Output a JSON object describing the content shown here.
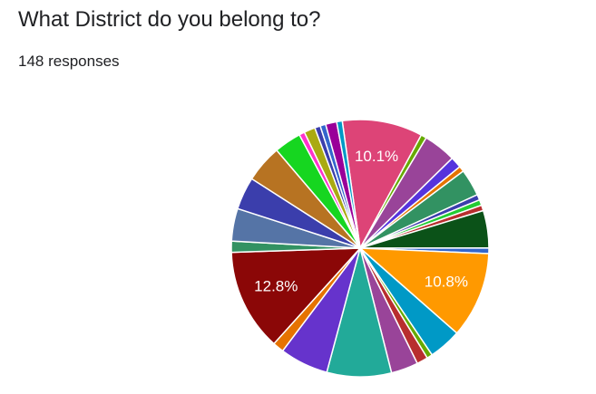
{
  "chart_data": {
    "type": "pie",
    "title": "What District do you belong to?",
    "subtitle": "148 responses",
    "values": [
      10.1,
      0.7,
      4.1,
      1.4,
      0.7,
      3.4,
      0.7,
      0.7,
      0.7,
      4.7,
      0.7,
      10.8,
      4.1,
      0.7,
      1.4,
      3.4,
      8.1,
      6.1,
      1.4,
      12.8,
      1.4,
      4.1,
      4.1,
      4.7,
      3.4,
      0.7,
      1.4,
      0.7,
      0.7,
      1.4,
      0.7
    ],
    "value_labels": [
      "10.1%",
      null,
      null,
      null,
      null,
      null,
      null,
      null,
      null,
      null,
      null,
      "10.8%",
      null,
      null,
      null,
      null,
      null,
      null,
      null,
      "12.8%",
      null,
      null,
      null,
      null,
      null,
      null,
      null,
      null,
      null,
      null,
      null
    ],
    "colors": [
      "#dd4477",
      "#66aa00",
      "#994499",
      "#5533dd",
      "#e67300",
      "#329262",
      "#3b3eac",
      "#22cc33",
      "#b82e2e",
      "#0b5218",
      "#3366cc",
      "#ff9900",
      "#0099c6",
      "#66aa00",
      "#b82e2e",
      "#994499",
      "#22aa99",
      "#6633cc",
      "#e67300",
      "#8b0707",
      "#329262",
      "#5574a6",
      "#3b3eac",
      "#b77322",
      "#16d620",
      "#ff33cc",
      "#aaaa11",
      "#3b3eac",
      "#3366cc",
      "#990099",
      "#0099c6"
    ]
  }
}
